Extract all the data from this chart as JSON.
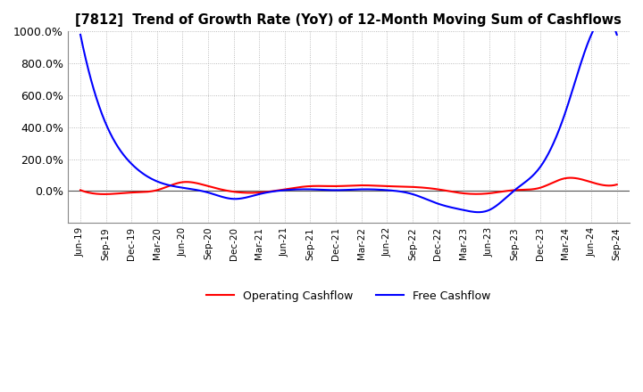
{
  "title": "[7812]  Trend of Growth Rate (YoY) of 12-Month Moving Sum of Cashflows",
  "ylim": [
    -200,
    1000
  ],
  "yticks": [
    0,
    200,
    400,
    600,
    800,
    1000
  ],
  "ytick_labels": [
    "0.0%",
    "200.0%",
    "400.0%",
    "600.0%",
    "800.0%",
    "1000.0%"
  ],
  "background_color": "#ffffff",
  "grid_color": "#aaaaaa",
  "legend_entries": [
    "Operating Cashflow",
    "Free Cashflow"
  ],
  "legend_colors": [
    "#ff0000",
    "#0000ff"
  ],
  "x_labels": [
    "Jun-19",
    "Sep-19",
    "Dec-19",
    "Mar-20",
    "Jun-20",
    "Sep-20",
    "Dec-20",
    "Mar-21",
    "Jun-21",
    "Sep-21",
    "Dec-21",
    "Mar-22",
    "Jun-22",
    "Sep-22",
    "Dec-22",
    "Mar-23",
    "Jun-23",
    "Sep-23",
    "Dec-23",
    "Mar-24",
    "Jun-24",
    "Sep-24"
  ],
  "operating_cashflow": [
    5,
    -20,
    -10,
    5,
    55,
    30,
    -5,
    -10,
    10,
    30,
    30,
    35,
    30,
    25,
    10,
    -15,
    -15,
    5,
    20,
    80,
    55,
    40
  ],
  "free_cashflow": [
    980,
    420,
    170,
    60,
    20,
    -10,
    -50,
    -20,
    5,
    10,
    5,
    10,
    5,
    -20,
    -80,
    -120,
    -120,
    5,
    150,
    500,
    980,
    980
  ]
}
